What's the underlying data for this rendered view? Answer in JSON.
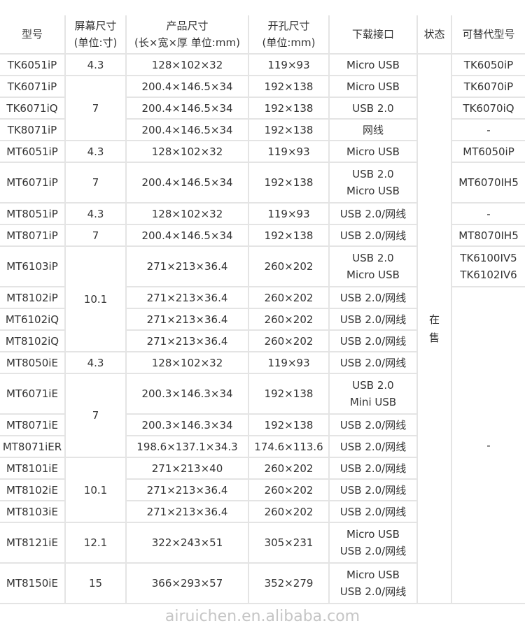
{
  "headers": [
    "型号",
    "屏幕尺寸\n(单位:寸)",
    "产品尺寸\n(长×宽×厚 单位:mm)",
    "开孔尺寸\n(单位:mm)",
    "下载接口",
    "状态",
    "可替代型号"
  ],
  "status": "在售",
  "watermark": "airuichen.en.alibaba.com",
  "rows": [
    {
      "model": "TK6051iP",
      "screen": "4.3",
      "size": "128×102×32",
      "cutout": "119×93",
      "iface": "Micro USB",
      "alt": "TK6050iP"
    },
    {
      "model": "TK6071iP",
      "screen": "7",
      "size": "200.4×146.5×34",
      "cutout": "192×138",
      "iface": "Micro USB",
      "alt": "TK6070iP"
    },
    {
      "model": "TK6071iQ",
      "size": "200.4×146.5×34",
      "cutout": "192×138",
      "iface": "USB 2.0",
      "alt": "TK6070iQ"
    },
    {
      "model": "TK8071iP",
      "size": "200.4×146.5×34",
      "cutout": "192×138",
      "iface": "网线",
      "alt": "-"
    },
    {
      "model": "MT6051iP",
      "screen": "4.3",
      "size": "128×102×32",
      "cutout": "119×93",
      "iface": "Micro USB",
      "alt": "MT6050iP"
    },
    {
      "model": "MT6071iP",
      "screen": "7",
      "size": "200.4×146.5×34",
      "cutout": "192×138",
      "iface": "USB 2.0\nMicro USB",
      "alt": "MT6070IH5"
    },
    {
      "model": "MT8051iP",
      "screen": "4.3",
      "size": "128×102×32",
      "cutout": "119×93",
      "iface": "USB 2.0/网线",
      "alt": "-"
    },
    {
      "model": "MT8071iP",
      "screen": "7",
      "size": "200.4×146.5×34",
      "cutout": "192×138",
      "iface": "USB 2.0/网线",
      "alt": "MT8070IH5"
    },
    {
      "model": "MT6103iP",
      "screen": "10.1",
      "size": "271×213×36.4",
      "cutout": "260×202",
      "iface": "USB 2.0\nMicro USB",
      "alt": "TK6100IV5\nTK6102IV6"
    },
    {
      "model": "MT8102iP",
      "size": "271×213×36.4",
      "cutout": "260×202",
      "iface": "USB 2.0/网线",
      "alt": "-"
    },
    {
      "model": "MT6102iQ",
      "size": "271×213×36.4",
      "cutout": "260×202",
      "iface": "USB 2.0/网线"
    },
    {
      "model": "MT8102iQ",
      "size": "271×213×36.4",
      "cutout": "260×202",
      "iface": "USB 2.0/网线"
    },
    {
      "model": "MT8050iE",
      "screen": "4.3",
      "size": "128×102×32",
      "cutout": "119×93",
      "iface": "USB 2.0/网线"
    },
    {
      "model": "MT6071iE",
      "screen": "7",
      "size": "200.3×146.3×34",
      "cutout": "192×138",
      "iface": "USB 2.0\nMini USB"
    },
    {
      "model": "MT8071iE",
      "size": "200.3×146.3×34",
      "cutout": "192×138",
      "iface": "USB 2.0/网线"
    },
    {
      "model": "MT8071iER",
      "size": "198.6×137.1×34.3",
      "cutout": "174.6×113.6",
      "iface": "USB 2.0/网线"
    },
    {
      "model": "MT8101iE",
      "screen": "10.1",
      "size": "271×213×40",
      "cutout": "260×202",
      "iface": "USB 2.0/网线"
    },
    {
      "model": "MT8102iE",
      "size": "271×213×36.4",
      "cutout": "260×202",
      "iface": "USB 2.0/网线"
    },
    {
      "model": "MT8103iE",
      "size": "271×213×36.4",
      "cutout": "260×202",
      "iface": "USB 2.0/网线"
    },
    {
      "model": "MT8121iE",
      "screen": "12.1",
      "size": "322×243×51",
      "cutout": "305×231",
      "iface": "Micro USB\nUSB 2.0/网线"
    },
    {
      "model": "MT8150iE",
      "screen": "15",
      "size": "366×293×57",
      "cutout": "352×279",
      "iface": "Micro USB\nUSB 2.0/网线"
    }
  ]
}
